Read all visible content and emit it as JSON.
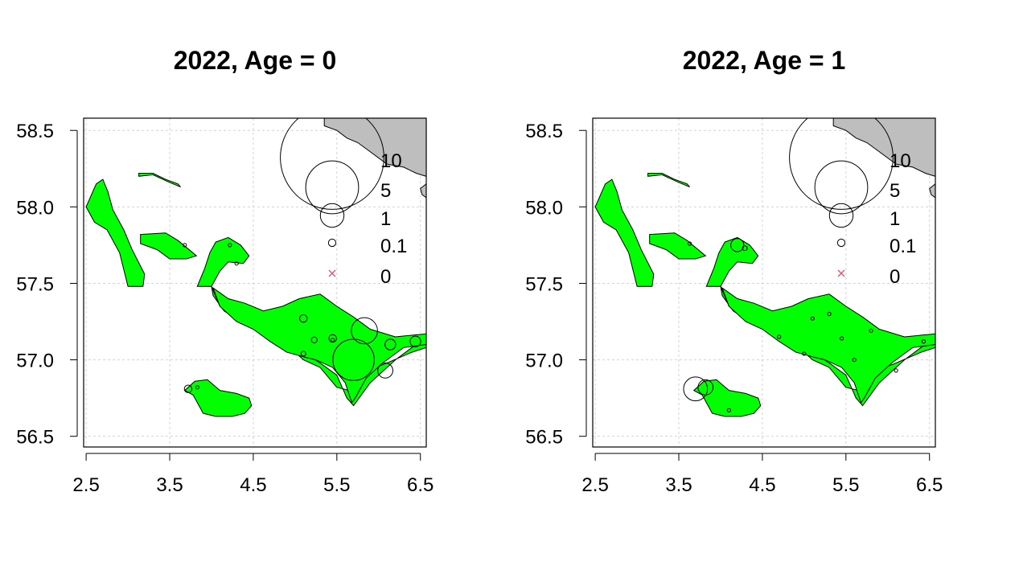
{
  "chart_data": [
    {
      "type": "scatter",
      "title": "2022, Age = 0",
      "xlabel": "",
      "ylabel": "",
      "xlim": [
        2.47,
        6.57
      ],
      "ylim": [
        56.43,
        58.58
      ],
      "xticks": [
        "2.5",
        "3.5",
        "4.5",
        "5.5",
        "6.5"
      ],
      "yticks": [
        "56.5",
        "57.0",
        "57.5",
        "58.0",
        "58.5"
      ],
      "grid": true,
      "legend_position": "top-right",
      "legend": [
        {
          "label": "10",
          "value": 10
        },
        {
          "label": "5",
          "value": 5
        },
        {
          "label": "1",
          "value": 1
        },
        {
          "label": "0.1",
          "value": 0.1
        },
        {
          "label": "0",
          "value": 0
        }
      ],
      "colors": {
        "polygon": "#00ff00",
        "land": "#bebebe",
        "zero_marker": "#df536b",
        "grid": "#d3d3d3"
      },
      "points": [
        {
          "x": 5.7,
          "y": 57.0,
          "value": 1.5
        },
        {
          "x": 5.83,
          "y": 57.19,
          "value": 0.6
        },
        {
          "x": 6.08,
          "y": 56.93,
          "value": 0.2
        },
        {
          "x": 6.14,
          "y": 57.1,
          "value": 0.1
        },
        {
          "x": 6.44,
          "y": 57.12,
          "value": 0.1
        },
        {
          "x": 5.45,
          "y": 57.14,
          "value": 0.05
        },
        {
          "x": 5.1,
          "y": 57.27,
          "value": 0.05
        },
        {
          "x": 5.23,
          "y": 57.13,
          "value": 0.03
        },
        {
          "x": 5.1,
          "y": 57.04,
          "value": 0.02
        },
        {
          "x": 5.45,
          "y": 57.13,
          "value": 0.01
        },
        {
          "x": 3.72,
          "y": 56.81,
          "value": 0.05
        },
        {
          "x": 3.83,
          "y": 56.82,
          "value": 0.01
        },
        {
          "x": 4.22,
          "y": 57.75,
          "value": 0.01
        },
        {
          "x": 3.68,
          "y": 57.75,
          "value": 0.01
        },
        {
          "x": 4.3,
          "y": 57.63,
          "value": 0.01
        }
      ]
    },
    {
      "type": "scatter",
      "title": "2022, Age = 1",
      "xlabel": "",
      "ylabel": "",
      "xlim": [
        2.47,
        6.57
      ],
      "ylim": [
        56.43,
        58.58
      ],
      "xticks": [
        "2.5",
        "3.5",
        "4.5",
        "5.5",
        "6.5"
      ],
      "yticks": [
        "56.5",
        "57.0",
        "57.5",
        "58.0",
        "58.5"
      ],
      "grid": true,
      "legend_position": "top-right",
      "legend": [
        {
          "label": "10",
          "value": 10
        },
        {
          "label": "5",
          "value": 5
        },
        {
          "label": "1",
          "value": 1
        },
        {
          "label": "0.1",
          "value": 0.1
        },
        {
          "label": "0",
          "value": 0
        }
      ],
      "colors": {
        "polygon": "#00ff00",
        "land": "#bebebe",
        "zero_marker": "#df536b",
        "grid": "#d3d3d3"
      },
      "points": [
        {
          "x": 3.7,
          "y": 56.81,
          "value": 0.5
        },
        {
          "x": 3.82,
          "y": 56.82,
          "value": 0.2
        },
        {
          "x": 4.2,
          "y": 57.75,
          "value": 0.15
        },
        {
          "x": 4.29,
          "y": 57.73,
          "value": 0.02
        },
        {
          "x": 3.63,
          "y": 57.76,
          "value": 0.01
        },
        {
          "x": 6.43,
          "y": 57.12,
          "value": 0.01
        },
        {
          "x": 5.45,
          "y": 57.14,
          "value": 0.01
        },
        {
          "x": 5.1,
          "y": 57.27,
          "value": 0.01
        },
        {
          "x": 5.0,
          "y": 57.04,
          "value": 0.01
        },
        {
          "x": 5.6,
          "y": 57.0,
          "value": 0.01
        },
        {
          "x": 5.8,
          "y": 57.19,
          "value": 0.01
        },
        {
          "x": 6.1,
          "y": 56.93,
          "value": 0.01
        },
        {
          "x": 4.7,
          "y": 57.15,
          "value": 0.01
        },
        {
          "x": 4.1,
          "y": 56.67,
          "value": 0.01
        },
        {
          "x": 5.3,
          "y": 57.3,
          "value": 0.01
        }
      ]
    }
  ]
}
